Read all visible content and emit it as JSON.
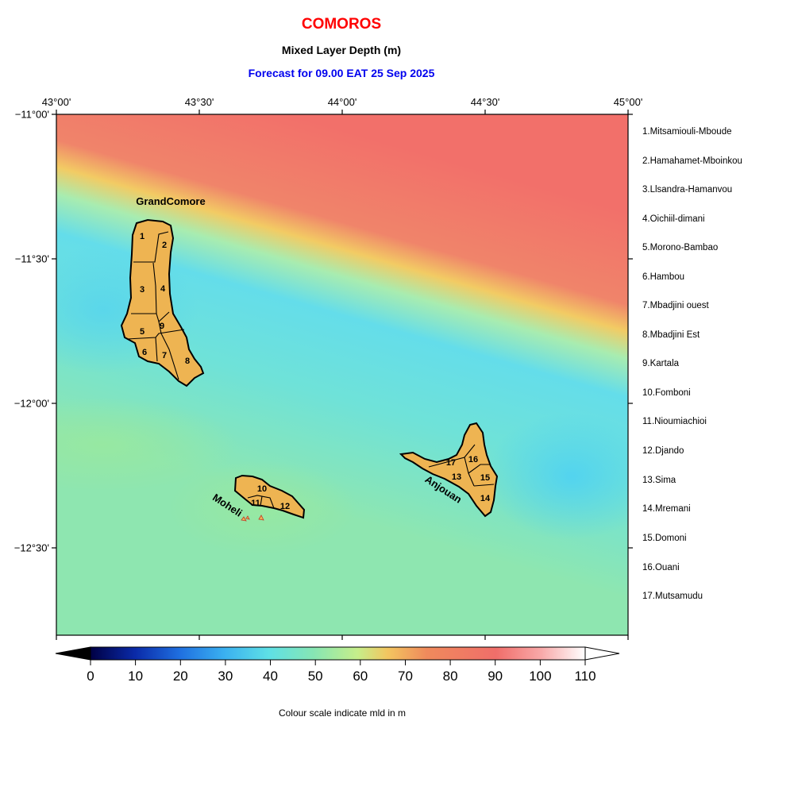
{
  "header": {
    "country": "COMOROS",
    "variable": "Mixed Layer Depth (m)",
    "forecast": "Forecast for  09.00 EAT 25 Sep 2025"
  },
  "axes": {
    "lon_labels": [
      "43°00'",
      "43°30'",
      "44°00'",
      "44°30'",
      "45°00'"
    ],
    "lat_labels": [
      "−11°00'",
      "−11°30'",
      "−12°00'",
      "−12°30'"
    ]
  },
  "map_labels": {
    "grand_comore": "GrandComore",
    "moheli": "Moheli",
    "anjouan": "Anjouan"
  },
  "regions": [
    "1.Mitsamiouli-Mboude",
    "2.Hamahamet-Mboinkou",
    "3.Llsandra-Hamanvou",
    "4.Oichiil-dimani",
    "5.Morono-Bambao",
    "6.Hambou",
    "7.Mbadjini ouest",
    "8.Mbadjini Est",
    "9.Kartala",
    "10.Fomboni",
    "11.Nioumiachioi",
    "12.Djando",
    "13.Sima",
    "14.Mremani",
    "15.Domoni",
    "16.Ouani",
    "17.Mutsamudu"
  ],
  "region_numbers": [
    "1",
    "2",
    "3",
    "4",
    "5",
    "6",
    "7",
    "8",
    "9",
    "10",
    "11",
    "12",
    "13",
    "14",
    "15",
    "16",
    "17"
  ],
  "colorbar": {
    "ticks": [
      "0",
      "10",
      "20",
      "30",
      "40",
      "50",
      "60",
      "70",
      "80",
      "90",
      "100",
      "110"
    ],
    "caption": "Colour scale indicate mld in m",
    "colors": [
      "#000033",
      "#0a1a9a",
      "#1a5fd6",
      "#3fb6f0",
      "#5ee0e6",
      "#8ae8b0",
      "#c8ee8c",
      "#f2c05a",
      "#f07a5a",
      "#f0706a",
      "#fab0b0",
      "#ffffff"
    ]
  }
}
